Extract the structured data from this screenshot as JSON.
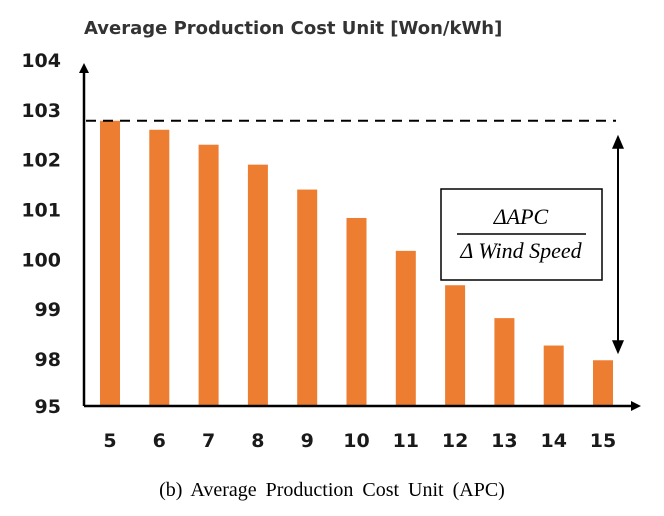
{
  "chart_data": {
    "type": "bar",
    "title": "Average Production Cost Unit [Won/kWh]",
    "categories": [
      "5",
      "6",
      "7",
      "8",
      "9",
      "10",
      "11",
      "12",
      "13",
      "14",
      "15"
    ],
    "values": [
      102.78,
      102.6,
      102.3,
      101.9,
      101.4,
      100.83,
      100.17,
      99.48,
      98.82,
      98.27,
      97.92
    ],
    "y_tick_labels": [
      "95",
      "98",
      "99",
      "100",
      "101",
      "102",
      "103",
      "104"
    ],
    "bar_color": "#ED7D31",
    "grid": false,
    "reference_line": {
      "value": 102.78,
      "style": "dashed"
    },
    "annotation": {
      "numerator": "ΔAPC",
      "denominator": "Δ Wind Speed"
    }
  },
  "caption": "(b) Average Production Cost Unit (APC)"
}
